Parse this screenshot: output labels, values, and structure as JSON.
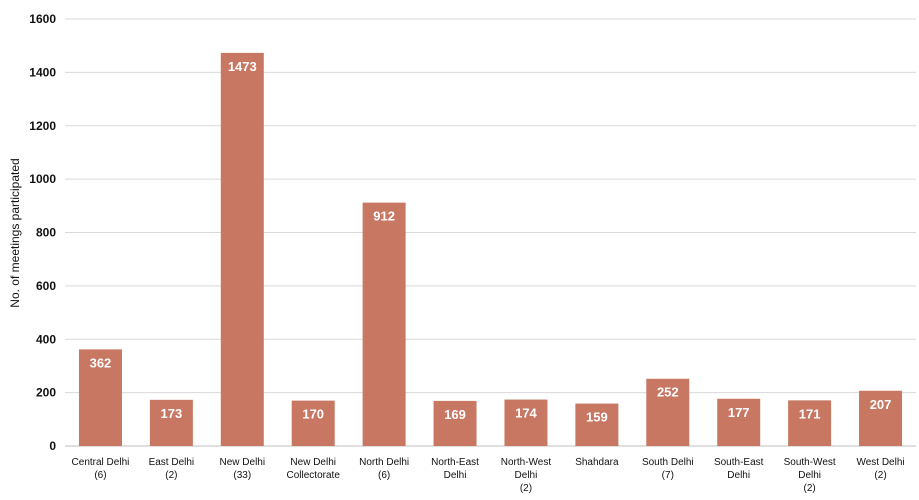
{
  "chart_data": {
    "type": "bar",
    "categories": [
      [
        "Central Delhi",
        "(6)"
      ],
      [
        "East Delhi",
        "(2)"
      ],
      [
        "New Delhi",
        "(33)"
      ],
      [
        "New Delhi",
        "Collectorate"
      ],
      [
        "North Delhi",
        "(6)"
      ],
      [
        "North-East",
        "Delhi"
      ],
      [
        "North-West",
        "Delhi",
        "(2)"
      ],
      [
        "Shahdara"
      ],
      [
        "South Delhi",
        "(7)"
      ],
      [
        "South-East",
        "Delhi"
      ],
      [
        "South-West",
        "Delhi",
        "(2)"
      ],
      [
        "West Delhi",
        "(2)"
      ]
    ],
    "values": [
      362,
      173,
      1473,
      170,
      912,
      169,
      174,
      159,
      252,
      177,
      171,
      207
    ],
    "ylabel": "No. of meetings participated",
    "ylim": [
      0,
      1600
    ],
    "yticks": [
      0,
      200,
      400,
      600,
      800,
      1000,
      1200,
      1400,
      1600
    ],
    "bar_color": "#c87763",
    "grid": true
  }
}
